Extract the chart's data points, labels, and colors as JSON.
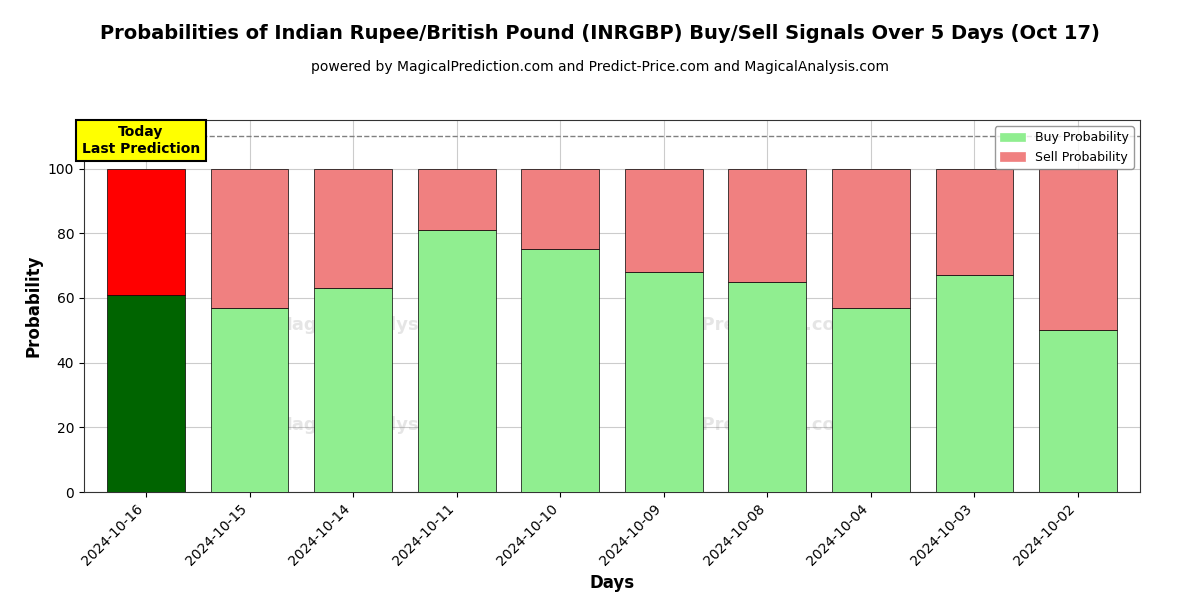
{
  "title": "Probabilities of Indian Rupee/British Pound (INRGBP) Buy/Sell Signals Over 5 Days (Oct 17)",
  "subtitle": "powered by MagicalPrediction.com and Predict-Price.com and MagicalAnalysis.com",
  "xlabel": "Days",
  "ylabel": "Probability",
  "dates": [
    "2024-10-16",
    "2024-10-15",
    "2024-10-14",
    "2024-10-11",
    "2024-10-10",
    "2024-10-09",
    "2024-10-08",
    "2024-10-04",
    "2024-10-03",
    "2024-10-02"
  ],
  "buy_values": [
    61,
    57,
    63,
    81,
    75,
    68,
    65,
    57,
    67,
    50
  ],
  "sell_values": [
    39,
    43,
    37,
    19,
    25,
    32,
    35,
    43,
    33,
    50
  ],
  "today_index": 0,
  "today_buy_color": "#006400",
  "today_sell_color": "#ff0000",
  "normal_buy_color": "#90EE90",
  "normal_sell_color": "#F08080",
  "bar_edge_color": "#000000",
  "today_label": "Today\nLast Prediction",
  "today_label_bg": "#ffff00",
  "legend_buy_label": "Buy Probability",
  "legend_sell_label": "Sell Probability",
  "ylim": [
    0,
    115
  ],
  "yticks": [
    0,
    20,
    40,
    60,
    80,
    100
  ],
  "dashed_line_y": 110,
  "background_color": "#ffffff",
  "grid_color": "#cccccc",
  "title_fontsize": 14,
  "subtitle_fontsize": 10,
  "axis_label_fontsize": 12,
  "tick_fontsize": 10,
  "bar_width": 0.75
}
